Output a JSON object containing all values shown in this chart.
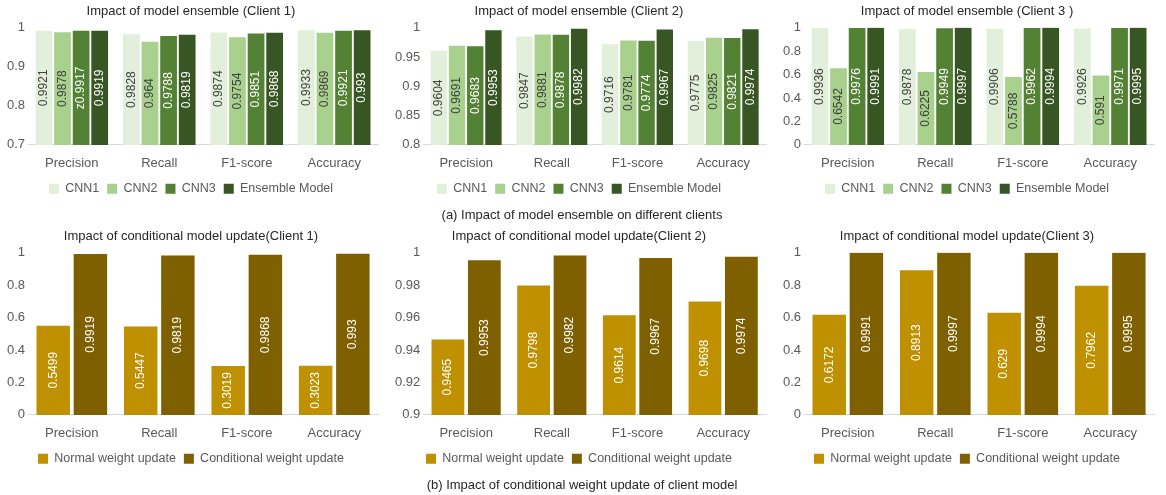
{
  "chart_data": [
    {
      "type": "bar",
      "title": "Impact of model ensemble (Client 1)",
      "categories": [
        "Precision",
        "Recall",
        "F1-score",
        "Accuracy"
      ],
      "ylim": [
        0.7,
        1
      ],
      "yticks": [
        0.7,
        0.8,
        0.9,
        1
      ],
      "grid": false,
      "legend": "bottom",
      "data_labels": true,
      "series": [
        {
          "name": "CNN1",
          "color": "#e2efda",
          "values": [
            0.9921,
            0.9828,
            0.9874,
            0.9933
          ]
        },
        {
          "name": "CNN2",
          "color": "#a9d18e",
          "values": [
            0.9878,
            0.964,
            0.9754,
            0.9869
          ]
        },
        {
          "name": "CNN3",
          "color": "#548235",
          "values": [
            0.9917,
            0.9788,
            0.9851,
            0.9921
          ],
          "value_labels": [
            "z0.9917",
            "0.9788",
            "0.9851",
            "0.9921"
          ]
        },
        {
          "name": "Ensemble Model",
          "color": "#375623",
          "values": [
            0.9919,
            0.9819,
            0.9868,
            0.993
          ]
        }
      ]
    },
    {
      "type": "bar",
      "title": "Impact of model ensemble (Client 2)",
      "categories": [
        "Precision",
        "Recall",
        "F1-score",
        "Accuracy"
      ],
      "ylim": [
        0.8,
        1
      ],
      "yticks": [
        0.8,
        0.85,
        0.9,
        0.95,
        1
      ],
      "grid": false,
      "legend": "bottom",
      "data_labels": true,
      "annotations": [
        "(a) Impact of model ensemble on different clients"
      ],
      "series": [
        {
          "name": "CNN1",
          "color": "#e2efda",
          "values": [
            0.9604,
            0.9847,
            0.9716,
            0.9775
          ]
        },
        {
          "name": "CNN2",
          "color": "#a9d18e",
          "values": [
            0.9691,
            0.9881,
            0.9781,
            0.9825
          ]
        },
        {
          "name": "CNN3",
          "color": "#548235",
          "values": [
            0.9683,
            0.9878,
            0.9774,
            0.9821
          ]
        },
        {
          "name": "Ensemble Model",
          "color": "#375623",
          "values": [
            0.9953,
            0.9982,
            0.9967,
            0.9974
          ]
        }
      ]
    },
    {
      "type": "bar",
      "title": "Impact of model ensemble (Client 3 )",
      "categories": [
        "Precision",
        "Recall",
        "F1-score",
        "Accuracy"
      ],
      "ylim": [
        0,
        1
      ],
      "yticks": [
        0,
        0.2,
        0.4,
        0.6,
        0.8,
        1
      ],
      "grid": false,
      "legend": "bottom",
      "data_labels": true,
      "series": [
        {
          "name": "CNN1",
          "color": "#e2efda",
          "values": [
            0.9936,
            0.9878,
            0.9906,
            0.9926
          ]
        },
        {
          "name": "CNN2",
          "color": "#a9d18e",
          "values": [
            0.6542,
            0.6225,
            0.5788,
            0.591
          ]
        },
        {
          "name": "CNN3",
          "color": "#548235",
          "values": [
            0.9976,
            0.9949,
            0.9962,
            0.9971
          ]
        },
        {
          "name": "Ensemble Model",
          "color": "#375623",
          "values": [
            0.9991,
            0.9997,
            0.9994,
            0.9995
          ]
        }
      ]
    },
    {
      "type": "bar",
      "title": "Impact of conditional model update(Client 1)",
      "categories": [
        "Precision",
        "Recall",
        "F1-score",
        "Accuracy"
      ],
      "ylim": [
        0,
        1
      ],
      "yticks": [
        0,
        0.2,
        0.4,
        0.6,
        0.8,
        1
      ],
      "grid": false,
      "legend": "bottom",
      "data_labels": true,
      "series": [
        {
          "name": "Normal weight update",
          "color": "#bf9000",
          "values": [
            0.5499,
            0.5447,
            0.3019,
            0.3023
          ]
        },
        {
          "name": "Conditional weight update",
          "color": "#7f6000",
          "values": [
            0.9919,
            0.9819,
            0.9868,
            0.993
          ]
        }
      ]
    },
    {
      "type": "bar",
      "title": "Impact of conditional model update(Client 2)",
      "categories": [
        "Precision",
        "Recall",
        "F1-score",
        "Accuracy"
      ],
      "ylim": [
        0.9,
        1
      ],
      "yticks": [
        0.9,
        0.92,
        0.94,
        0.96,
        0.98,
        1
      ],
      "grid": false,
      "legend": "bottom",
      "data_labels": true,
      "annotations": [
        "(b) Impact of conditional weight update of client model"
      ],
      "series": [
        {
          "name": "Normal weight update",
          "color": "#bf9000",
          "values": [
            0.9465,
            0.9798,
            0.9614,
            0.9698
          ]
        },
        {
          "name": "Conditional weight update",
          "color": "#7f6000",
          "values": [
            0.9953,
            0.9982,
            0.9967,
            0.9974
          ]
        }
      ]
    },
    {
      "type": "bar",
      "title": "Impact of conditional model update(Client 3)",
      "categories": [
        "Precision",
        "Recall",
        "F1-score",
        "Accuracy"
      ],
      "ylim": [
        0,
        1
      ],
      "yticks": [
        0,
        0.2,
        0.4,
        0.6,
        0.8,
        1
      ],
      "grid": false,
      "legend": "bottom",
      "data_labels": true,
      "series": [
        {
          "name": "Normal weight update",
          "color": "#bf9000",
          "values": [
            0.6172,
            0.8913,
            0.629,
            0.7962
          ]
        },
        {
          "name": "Conditional weight update",
          "color": "#7f6000",
          "values": [
            0.9991,
            0.9997,
            0.9994,
            0.9995
          ]
        }
      ]
    }
  ]
}
